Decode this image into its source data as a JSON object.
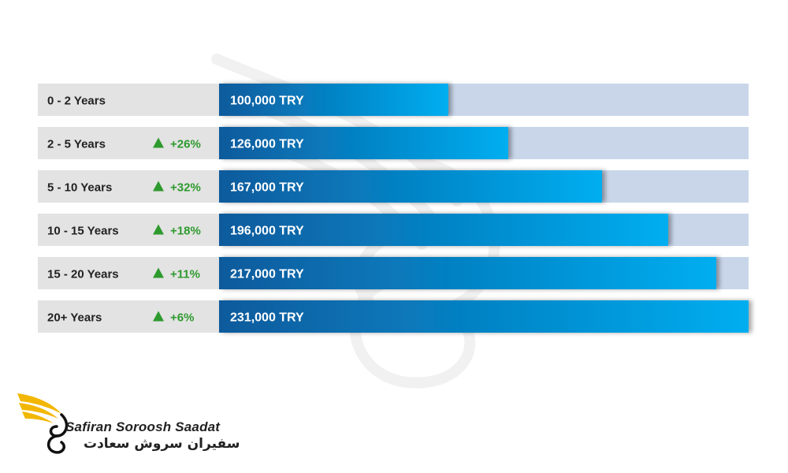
{
  "chart_data": {
    "type": "bar",
    "orientation": "horizontal",
    "categories": [
      "0 - 2 Years",
      "2 - 5 Years",
      "5 - 10 Years",
      "10 - 15 Years",
      "15 - 20 Years",
      "20+ Years"
    ],
    "values": [
      100000,
      126000,
      167000,
      196000,
      217000,
      231000
    ],
    "value_labels": [
      "100,000 TRY",
      "126,000 TRY",
      "167,000 TRY",
      "196,000 TRY",
      "217,000 TRY",
      "231,000 TRY"
    ],
    "changes": [
      "",
      "+26%",
      "+32%",
      "+18%",
      "+11%",
      "+6%"
    ],
    "xlim": [
      0,
      231000
    ],
    "grid": false,
    "colors": {
      "bar_dark": "#0b5a9c",
      "bar_light": "#00aef0",
      "track": "#c9d6ea",
      "label_bg": "#e3e3e3",
      "change_green": "#2e9a2e",
      "value_text": "#ffffff",
      "label_text": "#222222"
    }
  },
  "brand": {
    "name_en": "Safiran Soroosh Saadat",
    "name_fa": "سفیران سروش سعادت",
    "accent": "#f2b705"
  }
}
